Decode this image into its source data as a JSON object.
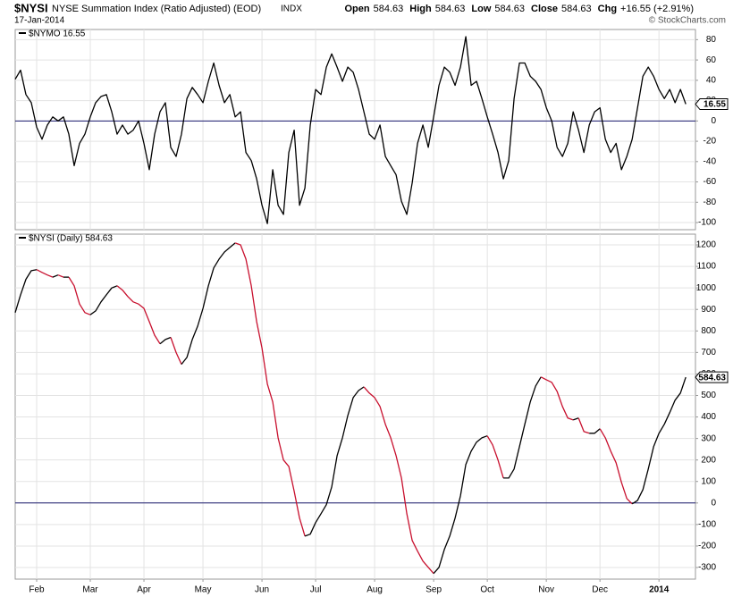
{
  "header": {
    "symbol": "$NYSI",
    "name": "NYSE Summation Index (Ratio Adjusted) (EOD)",
    "exchange": "INDX",
    "date": "17-Jan-2014",
    "quote": [
      {
        "label": "Open",
        "value": "584.63"
      },
      {
        "label": "High",
        "value": "584.63"
      },
      {
        "label": "Low",
        "value": "584.63"
      },
      {
        "label": "Close",
        "value": "584.63"
      },
      {
        "label": "Chg",
        "value": "+16.55 (+2.91%)"
      }
    ],
    "copyright": "© StockCharts.com"
  },
  "chart_data": [
    {
      "type": "line",
      "title": "$NYMO 16.55",
      "color": "#000000",
      "hline": 0,
      "hline_color": "#1a1a6e",
      "grid": true,
      "xlim": [
        0,
        126.8
      ],
      "ylim": [
        -107,
        90
      ],
      "yticks": [
        80,
        60,
        40,
        20,
        0,
        -20,
        -40,
        -60,
        -80,
        -100
      ],
      "values": [
        41,
        50,
        26,
        18,
        -6,
        -18,
        -4,
        4,
        0,
        4,
        -13,
        -44,
        -22,
        -13,
        4,
        18,
        24,
        26,
        9,
        -13,
        -4,
        -13,
        -9,
        0,
        -22,
        -48,
        -13,
        9,
        18,
        -26,
        -35,
        -13,
        22,
        33,
        26,
        18,
        39,
        57,
        35,
        18,
        26,
        4,
        9,
        -31,
        -39,
        -57,
        -83,
        -101,
        -48,
        -83,
        -92,
        -31,
        -9,
        -83,
        -66,
        -4,
        31,
        26,
        53,
        66,
        53,
        39,
        53,
        48,
        31,
        9,
        -13,
        -18,
        -4,
        -35,
        -44,
        -53,
        -79,
        -92,
        -61,
        -22,
        -4,
        -26,
        4,
        35,
        53,
        48,
        35,
        53,
        83,
        35,
        39,
        22,
        4,
        -13,
        -31,
        -57,
        -39,
        22,
        57,
        57,
        44,
        39,
        31,
        13,
        0,
        -26,
        -35,
        -22,
        9,
        -9,
        -31,
        -4,
        9,
        13,
        -18,
        -31,
        -22,
        -48,
        -35,
        -18,
        13,
        44,
        53,
        44,
        31,
        22,
        31,
        18,
        31,
        16.55
      ]
    },
    {
      "type": "line",
      "title": "$NYSI (Daily) 584.63",
      "color": "#000000",
      "down_color": "#c8102e",
      "hline": 0,
      "hline_color": "#1a1a6e",
      "grid": true,
      "xlim": [
        0,
        126.8
      ],
      "ylim": [
        -354,
        1250
      ],
      "yticks": [
        1200,
        1100,
        1000,
        900,
        800,
        700,
        600,
        500,
        400,
        300,
        200,
        100,
        0,
        -100,
        -200,
        -300
      ],
      "xticks": [
        {
          "value": 4,
          "label": "Feb"
        },
        {
          "value": 14,
          "label": "Mar"
        },
        {
          "value": 24,
          "label": "Apr"
        },
        {
          "value": 35,
          "label": "May"
        },
        {
          "value": 46,
          "label": "Jun"
        },
        {
          "value": 56,
          "label": "Jul"
        },
        {
          "value": 67,
          "label": "Aug"
        },
        {
          "value": 78,
          "label": "Sep"
        },
        {
          "value": 88,
          "label": "Oct"
        },
        {
          "value": 99,
          "label": "Nov"
        },
        {
          "value": 109,
          "label": "Dec"
        },
        {
          "value": 120,
          "label": "2014"
        }
      ],
      "values": [
        885,
        968,
        1040,
        1080,
        1085,
        1072,
        1060,
        1050,
        1060,
        1050,
        1050,
        1010,
        925,
        885,
        875,
        893,
        935,
        968,
        1000,
        1010,
        990,
        960,
        935,
        925,
        905,
        843,
        780,
        740,
        760,
        770,
        700,
        645,
        677,
        760,
        822,
        905,
        1010,
        1093,
        1134,
        1167,
        1188,
        1209,
        1200,
        1134,
        1010,
        843,
        720,
        553,
        470,
        303,
        200,
        170,
        54,
        -70,
        -154,
        -145,
        -91,
        -50,
        -8,
        75,
        220,
        303,
        407,
        490,
        523,
        540,
        511,
        490,
        449,
        366,
        303,
        220,
        116,
        -50,
        -174,
        -224,
        -270,
        -299,
        -328,
        -299,
        -216,
        -154,
        -70,
        33,
        179,
        241,
        283,
        303,
        312,
        270,
        200,
        116,
        116,
        158,
        262,
        366,
        470,
        544,
        586,
        573,
        561,
        519,
        449,
        395,
        386,
        395,
        332,
        324,
        324,
        345,
        303,
        241,
        187,
        96,
        21,
        -4,
        12,
        62,
        158,
        262,
        324,
        366,
        420,
        478,
        511,
        584.63
      ]
    }
  ]
}
